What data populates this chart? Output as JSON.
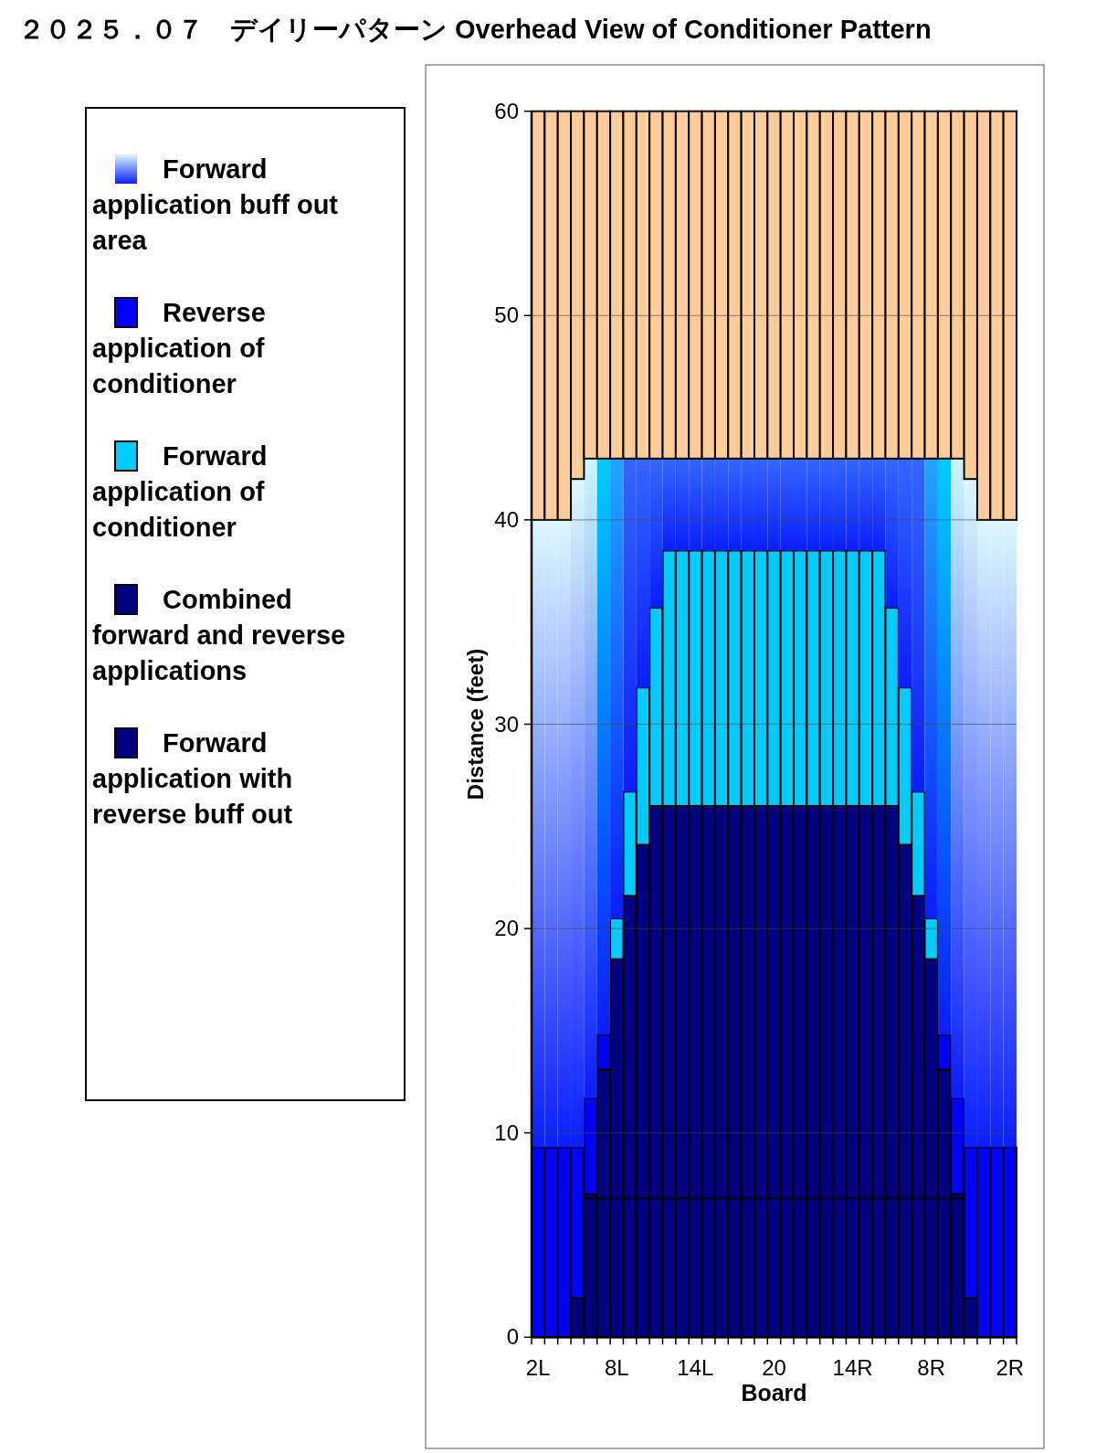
{
  "chart_data": {
    "type": "bar",
    "title": "２０２５．０７　デイリーパターン Overhead View of Conditioner Pattern",
    "xlabel": "Board",
    "ylabel": "Distance (feet)",
    "stacked": true,
    "ylim": [
      0,
      60
    ],
    "yticks": [
      0,
      10,
      20,
      30,
      40,
      50,
      60
    ],
    "grid": "y",
    "legend": "left",
    "categories": [
      "2L",
      null,
      null,
      null,
      null,
      null,
      "8L",
      null,
      null,
      null,
      null,
      null,
      "14L",
      null,
      null,
      null,
      null,
      null,
      "20",
      null,
      null,
      null,
      null,
      null,
      "14R",
      null,
      null,
      null,
      null,
      null,
      "8R",
      null,
      null,
      null,
      null,
      null,
      "2R"
    ],
    "series": [
      {
        "name": "Forward application with reverse buff out",
        "color": "#000080",
        "values": [
          0,
          0,
          0,
          1.9,
          6.8,
          6.8,
          6.8,
          6.8,
          6.8,
          6.8,
          6.8,
          6.8,
          6.8,
          6.8,
          6.8,
          6.8,
          6.8,
          6.8,
          6.8,
          6.8,
          6.8,
          6.8,
          6.8,
          6.8,
          6.8,
          6.8,
          6.8,
          6.8,
          6.8,
          6.8,
          6.8,
          6.8,
          6.8,
          1.9,
          0,
          0,
          0
        ]
      },
      {
        "name": "Combined forward and reverse applications",
        "color": "#000080",
        "values": [
          0,
          0,
          0,
          0,
          0.2,
          6.3,
          11.7,
          14.8,
          17.3,
          19.2,
          19.2,
          19.2,
          19.2,
          19.2,
          19.2,
          19.2,
          19.2,
          19.2,
          19.2,
          19.2,
          19.2,
          19.2,
          19.2,
          19.2,
          19.2,
          19.2,
          19.2,
          19.2,
          17.3,
          14.8,
          11.7,
          6.3,
          0.2,
          0,
          0,
          0,
          0
        ]
      },
      {
        "name": "Forward application of conditioner",
        "color": "#00ccff",
        "values": [
          0,
          0,
          0,
          0,
          0,
          0,
          2.0,
          5.1,
          7.7,
          9.7,
          12.5,
          12.5,
          12.5,
          12.5,
          12.5,
          12.5,
          12.5,
          12.5,
          12.5,
          12.5,
          12.5,
          12.5,
          12.5,
          12.5,
          12.5,
          12.5,
          12.5,
          9.7,
          7.7,
          5.1,
          2.0,
          0,
          0,
          0,
          0,
          0,
          0
        ]
      },
      {
        "name": "Reverse application of conditioner",
        "color": "#0000ff",
        "values": [
          9.3,
          9.3,
          9.3,
          7.4,
          4.7,
          1.7,
          0,
          0,
          0,
          0,
          0,
          0,
          0,
          0,
          0,
          0,
          0,
          0,
          0,
          0,
          0,
          0,
          0,
          0,
          0,
          0,
          0,
          0,
          0,
          0,
          0,
          1.7,
          4.7,
          7.4,
          9.3,
          9.3,
          9.3
        ]
      },
      {
        "name": "Forward application buff out area",
        "color": "#0a1eff",
        "colors": [
          "#ddf7ff",
          "#ddf7ff",
          "#ddf7ff",
          "#ddf7ff",
          "#ccf7ff",
          "#00ccff",
          "#1fa5ff",
          "#3366ff",
          "#3366ff",
          "#3366ff",
          "#3366ff",
          "#3366ff",
          "#3366ff",
          "#3366ff",
          "#3366ff",
          "#3366ff",
          "#3366ff",
          "#3366ff",
          "#3366ff",
          "#3366ff",
          "#3366ff",
          "#3366ff",
          "#3366ff",
          "#3366ff",
          "#3366ff",
          "#3366ff",
          "#3366ff",
          "#3366ff",
          "#3366ff",
          "#3366ff",
          "#1fa5ff",
          "#00ccff",
          "#ccf7ff",
          "#ddf7ff",
          "#ddf7ff",
          "#ddf7ff",
          "#ddf7ff"
        ],
        "values": [
          30.7,
          30.7,
          30.7,
          32.7,
          31.3,
          28.2,
          22.5,
          16.3,
          11.2,
          7.3,
          4.5,
          4.5,
          4.5,
          4.5,
          4.5,
          4.5,
          4.5,
          4.5,
          4.5,
          4.5,
          4.5,
          4.5,
          4.5,
          4.5,
          4.5,
          4.5,
          4.5,
          7.3,
          11.2,
          16.3,
          22.5,
          28.2,
          31.3,
          32.7,
          30.7,
          30.7,
          30.7
        ]
      },
      {
        "color": "#ffcc99",
        "values": [
          20,
          20,
          20,
          18,
          17,
          17,
          17,
          17,
          17,
          17,
          17,
          17,
          17,
          17,
          17,
          17,
          17,
          17,
          17,
          17,
          17,
          17,
          17,
          17,
          17,
          17,
          17,
          17,
          17,
          17,
          17,
          17,
          17,
          18,
          20,
          20,
          20
        ]
      }
    ]
  }
}
